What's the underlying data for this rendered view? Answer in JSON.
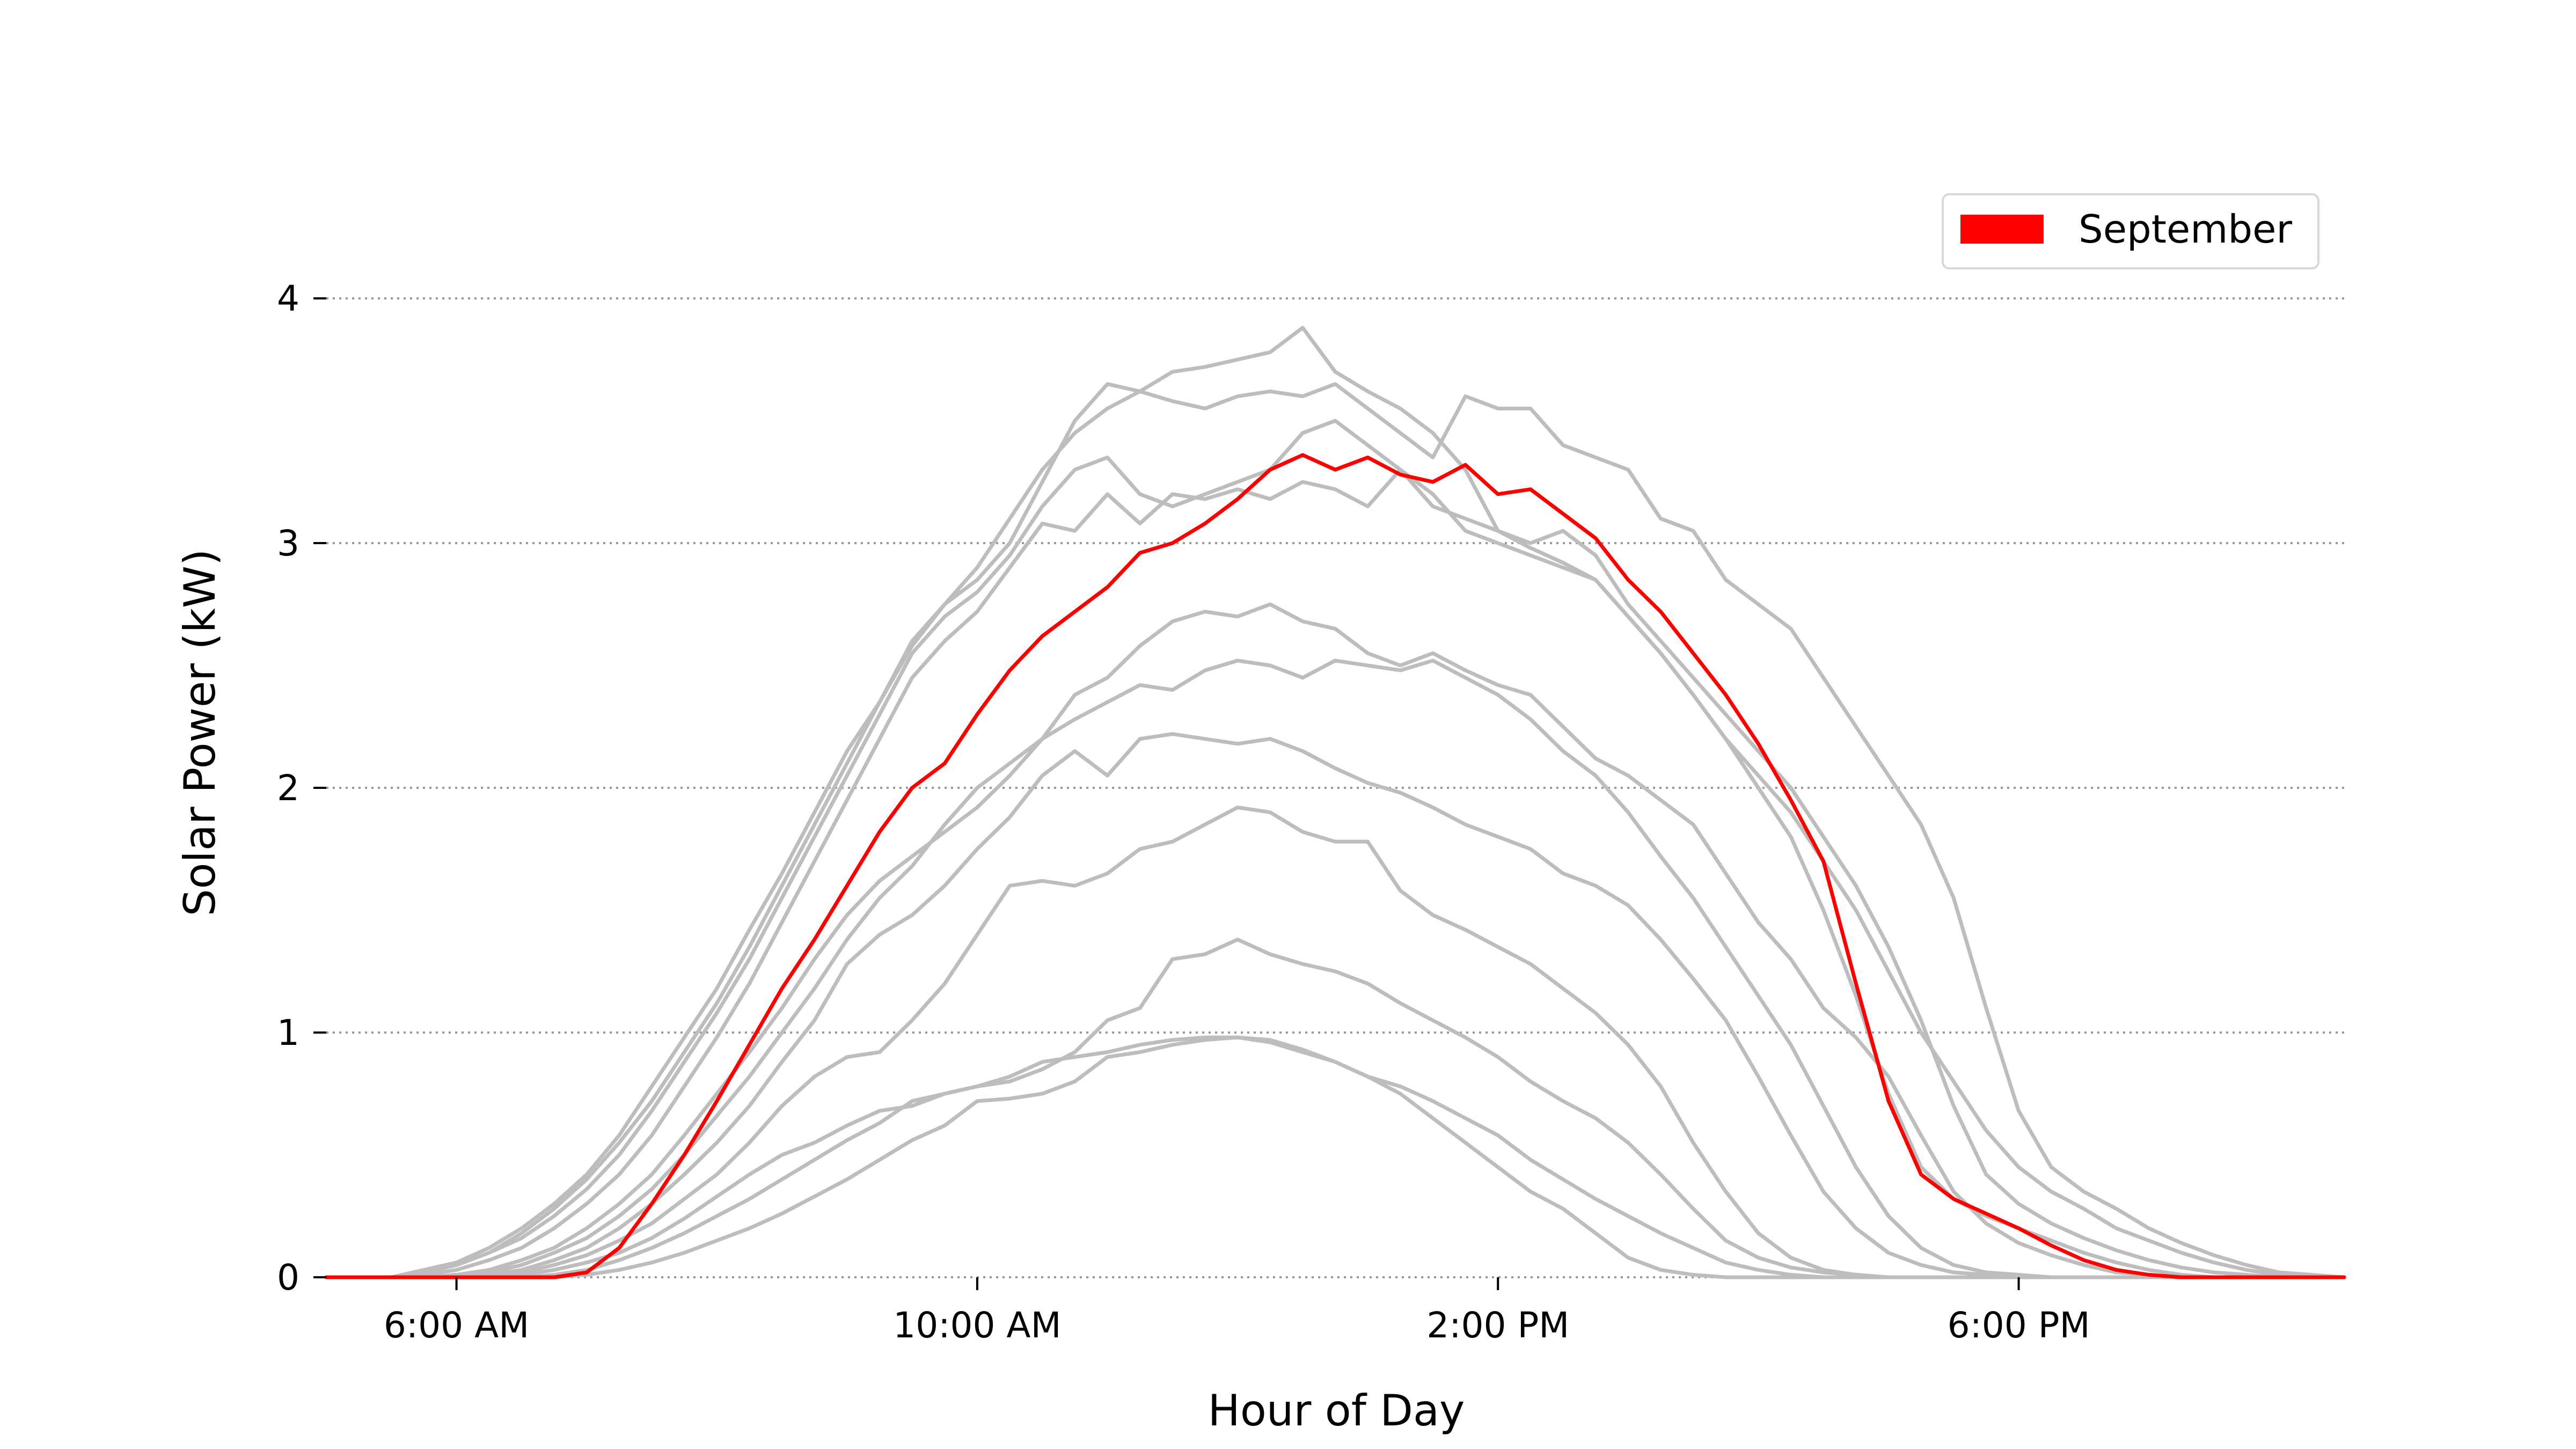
{
  "chart_data": {
    "type": "line",
    "title": "",
    "xlabel": "Hour of Day",
    "ylabel": "Solar Power (kW)",
    "xlim": [
      5.0,
      20.5
    ],
    "ylim": [
      0,
      4.2
    ],
    "x_ticks": [
      {
        "value": 6,
        "label": "6:00 AM"
      },
      {
        "value": 10,
        "label": "10:00 AM"
      },
      {
        "value": 14,
        "label": "2:00 PM"
      },
      {
        "value": 18,
        "label": "6:00 PM"
      }
    ],
    "y_ticks": [
      {
        "value": 0,
        "label": "0"
      },
      {
        "value": 1,
        "label": "1"
      },
      {
        "value": 2,
        "label": "2"
      },
      {
        "value": 3,
        "label": "3"
      },
      {
        "value": 4,
        "label": "4"
      }
    ],
    "grid": "horizontal dotted",
    "legend": {
      "position": "top-right",
      "entries": [
        {
          "label": "September",
          "color": "#ff0000"
        }
      ]
    },
    "x": [
      5.0,
      5.25,
      5.5,
      5.75,
      6.0,
      6.25,
      6.5,
      6.75,
      7.0,
      7.25,
      7.5,
      7.75,
      8.0,
      8.25,
      8.5,
      8.75,
      9.0,
      9.25,
      9.5,
      9.75,
      10.0,
      10.25,
      10.5,
      10.75,
      11.0,
      11.25,
      11.5,
      11.75,
      12.0,
      12.25,
      12.5,
      12.75,
      13.0,
      13.25,
      13.5,
      13.75,
      14.0,
      14.25,
      14.5,
      14.75,
      15.0,
      15.25,
      15.5,
      15.75,
      16.0,
      16.25,
      16.5,
      16.75,
      17.0,
      17.25,
      17.5,
      17.75,
      18.0,
      18.25,
      18.5,
      18.75,
      19.0,
      19.25,
      19.5,
      19.75,
      20.0,
      20.25,
      20.5
    ],
    "series": [
      {
        "color": "#bdbdbd",
        "highlight": false,
        "values": [
          0,
          0,
          0,
          0.02,
          0.05,
          0.1,
          0.18,
          0.28,
          0.4,
          0.55,
          0.72,
          0.92,
          1.12,
          1.35,
          1.6,
          1.85,
          2.1,
          2.35,
          2.6,
          2.75,
          2.85,
          3.0,
          3.25,
          3.5,
          3.65,
          3.62,
          3.7,
          3.72,
          3.75,
          3.78,
          3.88,
          3.7,
          3.62,
          3.55,
          3.45,
          3.3,
          3.05,
          2.98,
          2.92,
          2.85,
          2.7,
          2.55,
          2.38,
          2.2,
          2.0,
          1.8,
          1.5,
          1.15,
          0.75,
          0.45,
          0.32,
          0.25,
          0.2,
          0.15,
          0.1,
          0.06,
          0.03,
          0.01,
          0,
          0,
          0,
          0,
          0
        ]
      },
      {
        "color": "#bdbdbd",
        "highlight": false,
        "values": [
          0,
          0,
          0,
          0.03,
          0.06,
          0.12,
          0.2,
          0.3,
          0.42,
          0.58,
          0.78,
          0.98,
          1.18,
          1.42,
          1.65,
          1.9,
          2.15,
          2.35,
          2.58,
          2.75,
          2.9,
          3.1,
          3.3,
          3.45,
          3.55,
          3.62,
          3.58,
          3.55,
          3.6,
          3.62,
          3.6,
          3.65,
          3.55,
          3.45,
          3.35,
          3.6,
          3.55,
          3.55,
          3.4,
          3.35,
          3.3,
          3.1,
          3.05,
          2.85,
          2.75,
          2.65,
          2.45,
          2.25,
          2.05,
          1.85,
          1.55,
          1.1,
          0.68,
          0.45,
          0.35,
          0.28,
          0.2,
          0.14,
          0.09,
          0.05,
          0.02,
          0.01,
          0
        ]
      },
      {
        "color": "#bdbdbd",
        "highlight": false,
        "values": [
          0,
          0,
          0,
          0.02,
          0.05,
          0.1,
          0.16,
          0.25,
          0.36,
          0.5,
          0.68,
          0.88,
          1.08,
          1.3,
          1.55,
          1.8,
          2.05,
          2.3,
          2.55,
          2.7,
          2.8,
          2.95,
          3.15,
          3.3,
          3.35,
          3.2,
          3.15,
          3.2,
          3.25,
          3.3,
          3.45,
          3.5,
          3.4,
          3.3,
          3.2,
          3.05,
          3.0,
          2.95,
          2.9,
          2.85,
          2.7,
          2.55,
          2.38,
          2.2,
          2.05,
          1.9,
          1.7,
          1.5,
          1.25,
          1.0,
          0.8,
          0.6,
          0.45,
          0.35,
          0.28,
          0.2,
          0.15,
          0.1,
          0.06,
          0.03,
          0.01,
          0,
          0
        ]
      },
      {
        "color": "#bdbdbd",
        "highlight": false,
        "values": [
          0,
          0,
          0,
          0.01,
          0.03,
          0.07,
          0.12,
          0.2,
          0.3,
          0.42,
          0.58,
          0.78,
          0.98,
          1.2,
          1.45,
          1.7,
          1.95,
          2.2,
          2.45,
          2.6,
          2.72,
          2.9,
          3.08,
          3.05,
          3.2,
          3.08,
          3.2,
          3.18,
          3.22,
          3.18,
          3.25,
          3.22,
          3.15,
          3.3,
          3.15,
          3.1,
          3.05,
          3.0,
          3.05,
          2.95,
          2.75,
          2.6,
          2.45,
          2.3,
          2.15,
          2.0,
          1.8,
          1.6,
          1.35,
          1.05,
          0.7,
          0.42,
          0.3,
          0.22,
          0.16,
          0.11,
          0.07,
          0.04,
          0.02,
          0.01,
          0,
          0,
          0
        ]
      },
      {
        "color": "#bdbdbd",
        "highlight": false,
        "values": [
          0,
          0,
          0,
          0,
          0.01,
          0.03,
          0.07,
          0.12,
          0.2,
          0.3,
          0.42,
          0.58,
          0.75,
          0.92,
          1.1,
          1.3,
          1.48,
          1.62,
          1.72,
          1.82,
          1.92,
          2.05,
          2.2,
          2.38,
          2.45,
          2.58,
          2.68,
          2.72,
          2.7,
          2.75,
          2.68,
          2.65,
          2.55,
          2.5,
          2.55,
          2.48,
          2.42,
          2.38,
          2.25,
          2.12,
          2.05,
          1.95,
          1.85,
          1.65,
          1.45,
          1.3,
          1.1,
          0.98,
          0.82,
          0.58,
          0.35,
          0.22,
          0.14,
          0.09,
          0.05,
          0.02,
          0.01,
          0,
          0,
          0,
          0,
          0,
          0
        ]
      },
      {
        "color": "#bdbdbd",
        "highlight": false,
        "values": [
          0,
          0,
          0,
          0,
          0.01,
          0.02,
          0.05,
          0.1,
          0.16,
          0.25,
          0.36,
          0.5,
          0.66,
          0.82,
          1.0,
          1.18,
          1.38,
          1.55,
          1.68,
          1.85,
          2.0,
          2.1,
          2.2,
          2.28,
          2.35,
          2.42,
          2.4,
          2.48,
          2.52,
          2.5,
          2.45,
          2.52,
          2.5,
          2.48,
          2.52,
          2.45,
          2.38,
          2.28,
          2.15,
          2.05,
          1.9,
          1.72,
          1.55,
          1.35,
          1.15,
          0.95,
          0.7,
          0.45,
          0.25,
          0.12,
          0.05,
          0.02,
          0.01,
          0,
          0,
          0,
          0,
          0,
          0,
          0,
          0,
          0,
          0
        ]
      },
      {
        "color": "#bdbdbd",
        "highlight": false,
        "values": [
          0,
          0,
          0,
          0,
          0,
          0.01,
          0.03,
          0.07,
          0.12,
          0.2,
          0.3,
          0.42,
          0.55,
          0.7,
          0.88,
          1.05,
          1.28,
          1.4,
          1.48,
          1.6,
          1.75,
          1.88,
          2.05,
          2.15,
          2.05,
          2.2,
          2.22,
          2.2,
          2.18,
          2.2,
          2.15,
          2.08,
          2.02,
          1.98,
          1.92,
          1.85,
          1.8,
          1.75,
          1.65,
          1.6,
          1.52,
          1.38,
          1.22,
          1.05,
          0.82,
          0.58,
          0.35,
          0.2,
          0.1,
          0.05,
          0.02,
          0.01,
          0,
          0,
          0,
          0,
          0,
          0,
          0,
          0,
          0,
          0,
          0
        ]
      },
      {
        "color": "#bdbdbd",
        "highlight": false,
        "values": [
          0,
          0,
          0,
          0,
          0,
          0,
          0.02,
          0.05,
          0.09,
          0.15,
          0.22,
          0.32,
          0.42,
          0.55,
          0.7,
          0.82,
          0.9,
          0.92,
          1.05,
          1.2,
          1.4,
          1.6,
          1.62,
          1.6,
          1.65,
          1.75,
          1.78,
          1.85,
          1.92,
          1.9,
          1.82,
          1.78,
          1.78,
          1.58,
          1.48,
          1.42,
          1.35,
          1.28,
          1.18,
          1.08,
          0.95,
          0.78,
          0.55,
          0.35,
          0.18,
          0.08,
          0.03,
          0.01,
          0,
          0,
          0,
          0,
          0,
          0,
          0,
          0,
          0,
          0,
          0,
          0,
          0,
          0,
          0
        ]
      },
      {
        "color": "#bdbdbd",
        "highlight": false,
        "values": [
          0,
          0,
          0,
          0,
          0,
          0,
          0.01,
          0.03,
          0.06,
          0.1,
          0.16,
          0.24,
          0.33,
          0.42,
          0.5,
          0.55,
          0.62,
          0.68,
          0.7,
          0.75,
          0.78,
          0.8,
          0.85,
          0.92,
          1.05,
          1.1,
          1.3,
          1.32,
          1.38,
          1.32,
          1.28,
          1.25,
          1.2,
          1.12,
          1.05,
          0.98,
          0.9,
          0.8,
          0.72,
          0.65,
          0.55,
          0.42,
          0.28,
          0.15,
          0.08,
          0.04,
          0.02,
          0.01,
          0,
          0,
          0,
          0,
          0,
          0,
          0,
          0,
          0,
          0,
          0,
          0,
          0,
          0,
          0
        ]
      },
      {
        "color": "#bdbdbd",
        "highlight": false,
        "values": [
          0,
          0,
          0,
          0,
          0,
          0,
          0,
          0.01,
          0.03,
          0.07,
          0.12,
          0.18,
          0.25,
          0.32,
          0.4,
          0.48,
          0.56,
          0.63,
          0.72,
          0.75,
          0.78,
          0.82,
          0.88,
          0.9,
          0.92,
          0.95,
          0.97,
          0.98,
          0.98,
          0.96,
          0.92,
          0.88,
          0.82,
          0.75,
          0.65,
          0.55,
          0.45,
          0.35,
          0.28,
          0.18,
          0.08,
          0.03,
          0.01,
          0,
          0,
          0,
          0,
          0,
          0,
          0,
          0,
          0,
          0,
          0,
          0,
          0,
          0,
          0,
          0,
          0,
          0,
          0,
          0
        ]
      },
      {
        "color": "#bdbdbd",
        "highlight": false,
        "values": [
          0,
          0,
          0,
          0,
          0,
          0,
          0,
          0,
          0.01,
          0.03,
          0.06,
          0.1,
          0.15,
          0.2,
          0.26,
          0.33,
          0.4,
          0.48,
          0.56,
          0.62,
          0.72,
          0.73,
          0.75,
          0.8,
          0.9,
          0.92,
          0.95,
          0.97,
          0.98,
          0.97,
          0.93,
          0.88,
          0.82,
          0.78,
          0.72,
          0.65,
          0.58,
          0.48,
          0.4,
          0.32,
          0.25,
          0.18,
          0.12,
          0.06,
          0.03,
          0.01,
          0,
          0,
          0,
          0,
          0,
          0,
          0,
          0,
          0,
          0,
          0,
          0,
          0,
          0,
          0,
          0,
          0
        ]
      },
      {
        "color": "#ff0000",
        "highlight": true,
        "name": "September",
        "values": [
          0,
          0,
          0,
          0,
          0,
          0,
          0,
          0,
          0.02,
          0.12,
          0.3,
          0.5,
          0.72,
          0.95,
          1.18,
          1.38,
          1.6,
          1.82,
          2.0,
          2.1,
          2.3,
          2.48,
          2.62,
          2.72,
          2.82,
          2.96,
          3.0,
          3.08,
          3.18,
          3.3,
          3.36,
          3.3,
          3.35,
          3.28,
          3.25,
          3.32,
          3.2,
          3.22,
          3.12,
          3.02,
          2.85,
          2.72,
          2.55,
          2.38,
          2.18,
          1.95,
          1.7,
          1.2,
          0.72,
          0.42,
          0.32,
          0.26,
          0.2,
          0.13,
          0.07,
          0.03,
          0.01,
          0,
          0,
          0,
          0,
          0,
          0
        ]
      }
    ]
  }
}
